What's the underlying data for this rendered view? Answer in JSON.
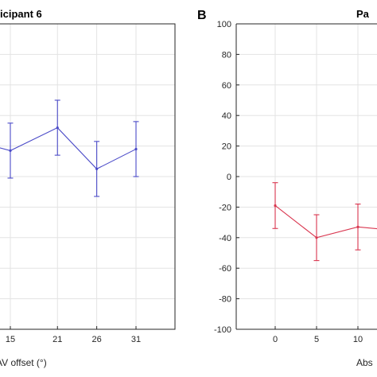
{
  "chart_data": [
    {
      "type": "line",
      "panel_label": "",
      "title": "icipant 6",
      "xlabel": "AV offset (°)",
      "ylabel": "",
      "x_ticks": [
        "15",
        "21",
        "26",
        "31"
      ],
      "ylim": [
        -100,
        100
      ],
      "grid": true,
      "series": [
        {
          "color": "#4b4bc8",
          "points": [
            {
              "x": 9,
              "y": 25,
              "err": 0
            },
            {
              "x": 15,
              "y": 17,
              "err": 18
            },
            {
              "x": 21,
              "y": 32,
              "err": 18
            },
            {
              "x": 26,
              "y": 5,
              "err": 18
            },
            {
              "x": 31,
              "y": 18,
              "err": 18
            }
          ]
        }
      ]
    },
    {
      "type": "line",
      "panel_label": "B",
      "title": "Pa",
      "xlabel": "Abs",
      "ylabel": "",
      "x_ticks": [
        "0",
        "5",
        "10"
      ],
      "y_ticks": [
        "100",
        "80",
        "60",
        "40",
        "20",
        "0",
        "-20",
        "-40",
        "-60",
        "-80",
        "-100"
      ],
      "ylim": [
        -100,
        100
      ],
      "grid": true,
      "series": [
        {
          "color": "#d9364f",
          "points": [
            {
              "x": 0,
              "y": -19,
              "err": 15
            },
            {
              "x": 5,
              "y": -40,
              "err": 15
            },
            {
              "x": 10,
              "y": -33,
              "err": 15
            },
            {
              "x": 14,
              "y": -35,
              "err": 15
            }
          ]
        }
      ]
    }
  ]
}
